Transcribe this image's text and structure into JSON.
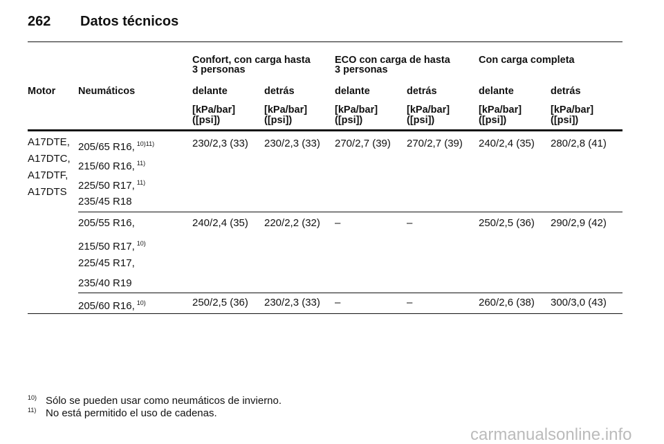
{
  "header": {
    "page_number": "262",
    "title": "Datos técnicos"
  },
  "table": {
    "group_headers": [
      [
        "Confort, con carga hasta",
        "3 personas"
      ],
      [
        "ECO con carga de hasta",
        "3 personas"
      ],
      [
        "Con carga completa"
      ]
    ],
    "columns": [
      "Motor",
      "Neumáticos",
      "delante",
      "detrás",
      "delante",
      "detrás",
      "delante",
      "detrás"
    ],
    "unit_headers": [
      [
        "[kPa/bar]",
        "([psi])"
      ],
      [
        "[kPa/bar]",
        "([psi])"
      ],
      [
        "[kPa/bar]",
        "([psi])"
      ],
      [
        "[kPa/bar]",
        "([psi])"
      ],
      [
        "[kPa/bar]",
        "([psi])"
      ],
      [
        "[kPa/bar]",
        "([psi])"
      ]
    ],
    "rows": [
      {
        "motor": [
          "A17DTE,",
          "A17DTC,",
          "A17DTF,",
          "A17DTS"
        ],
        "tires": [
          {
            "text": "205/65 R16,",
            "note": "10)11)"
          },
          {
            "text": "215/60 R16,",
            "note": "11)"
          },
          {
            "text": "225/50 R17,",
            "note": "11)"
          },
          {
            "text": "235/45 R18"
          }
        ],
        "values": [
          "230/2,3 (33)",
          "230/2,3 (33)",
          "270/2,7 (39)",
          "270/2,7 (39)",
          "240/2,4 (35)",
          "280/2,8 (41)"
        ]
      },
      {
        "motor": [],
        "tires": [
          {
            "text": "205/55 R16,"
          },
          {
            "text": "215/50 R17,",
            "note": "10)"
          },
          {
            "text": "225/45 R17,"
          },
          {
            "text": "235/40 R19"
          }
        ],
        "values": [
          "240/2,4 (35)",
          "220/2,2 (32)",
          "–",
          "–",
          "250/2,5 (36)",
          "290/2,9 (42)"
        ]
      },
      {
        "motor": [],
        "tires": [
          {
            "text": "205/60 R16,",
            "note": "10)"
          }
        ],
        "values": [
          "250/2,5 (36)",
          "230/2,3 (33)",
          "–",
          "–",
          "260/2,6 (38)",
          "300/3,0 (43)"
        ]
      }
    ]
  },
  "footnotes": [
    {
      "mark": "10)",
      "text": "Sólo se pueden usar como neumáticos de invierno."
    },
    {
      "mark": "11)",
      "text": "No está permitido el uso de cadenas."
    }
  ],
  "watermark": "carmanualsonline.info"
}
